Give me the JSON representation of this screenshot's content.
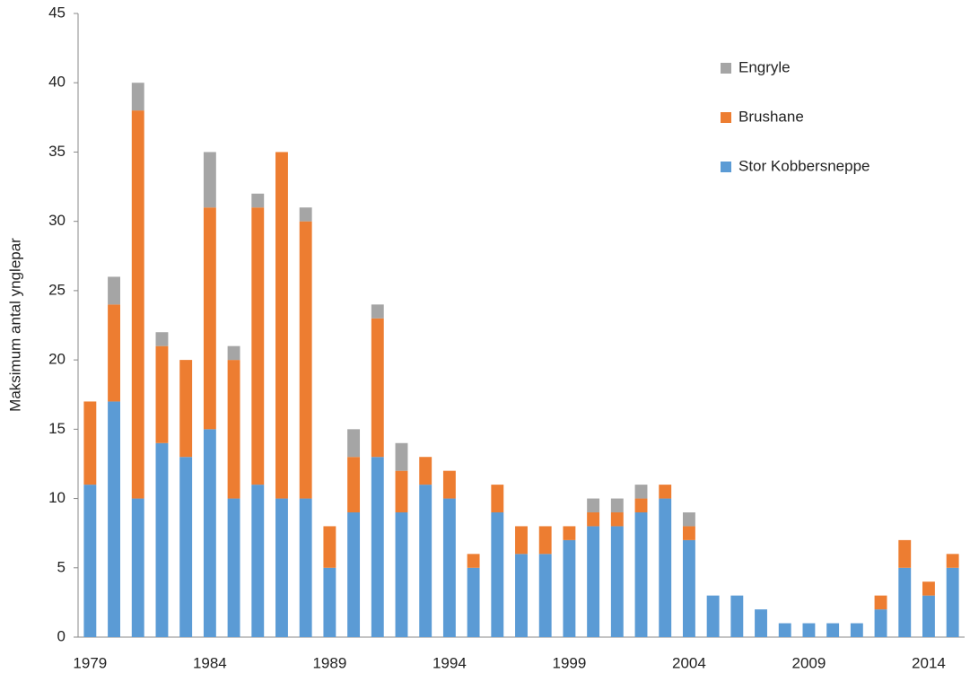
{
  "chart_data": {
    "type": "stacked_bar",
    "y_label": "Maksimum antal ynglepar",
    "categories": [
      "1979",
      null,
      null,
      null,
      null,
      "1984",
      null,
      null,
      null,
      null,
      "1989",
      null,
      null,
      null,
      null,
      "1994",
      null,
      null,
      null,
      null,
      "1999",
      null,
      null,
      null,
      null,
      "2004",
      null,
      null,
      null,
      null,
      "2009",
      null,
      null,
      null,
      null,
      "2014",
      null
    ],
    "series": [
      {
        "name": "Stor Kobbersneppe",
        "color": "#5b9bd5",
        "values": [
          11,
          17,
          10,
          14,
          13,
          15,
          10,
          11,
          10,
          10,
          5,
          9,
          13,
          9,
          11,
          10,
          5,
          9,
          6,
          6,
          7,
          8,
          8,
          9,
          10,
          7,
          3,
          3,
          2,
          1,
          1,
          1,
          1,
          2,
          5,
          3,
          5
        ]
      },
      {
        "name": "Brushane",
        "color": "#ed7d31",
        "values": [
          6,
          7,
          28,
          7,
          7,
          16,
          10,
          20,
          25,
          20,
          3,
          4,
          10,
          3,
          2,
          2,
          1,
          2,
          2,
          2,
          1,
          1,
          1,
          1,
          1,
          1,
          0,
          0,
          0,
          0,
          0,
          0,
          0,
          1,
          2,
          1,
          1
        ]
      },
      {
        "name": "Engryle",
        "color": "#a5a5a5",
        "values": [
          0,
          2,
          2,
          1,
          0,
          4,
          1,
          1,
          0,
          1,
          0,
          2,
          1,
          2,
          0,
          0,
          0,
          0,
          0,
          0,
          0,
          1,
          1,
          1,
          0,
          1,
          0,
          0,
          0,
          0,
          0,
          0,
          0,
          0,
          0,
          0,
          0
        ]
      }
    ],
    "ylim": [
      0,
      45
    ],
    "yticks": [
      0,
      5,
      10,
      15,
      20,
      25,
      30,
      35,
      40,
      45
    ],
    "grid": false,
    "legend": "upper right"
  }
}
